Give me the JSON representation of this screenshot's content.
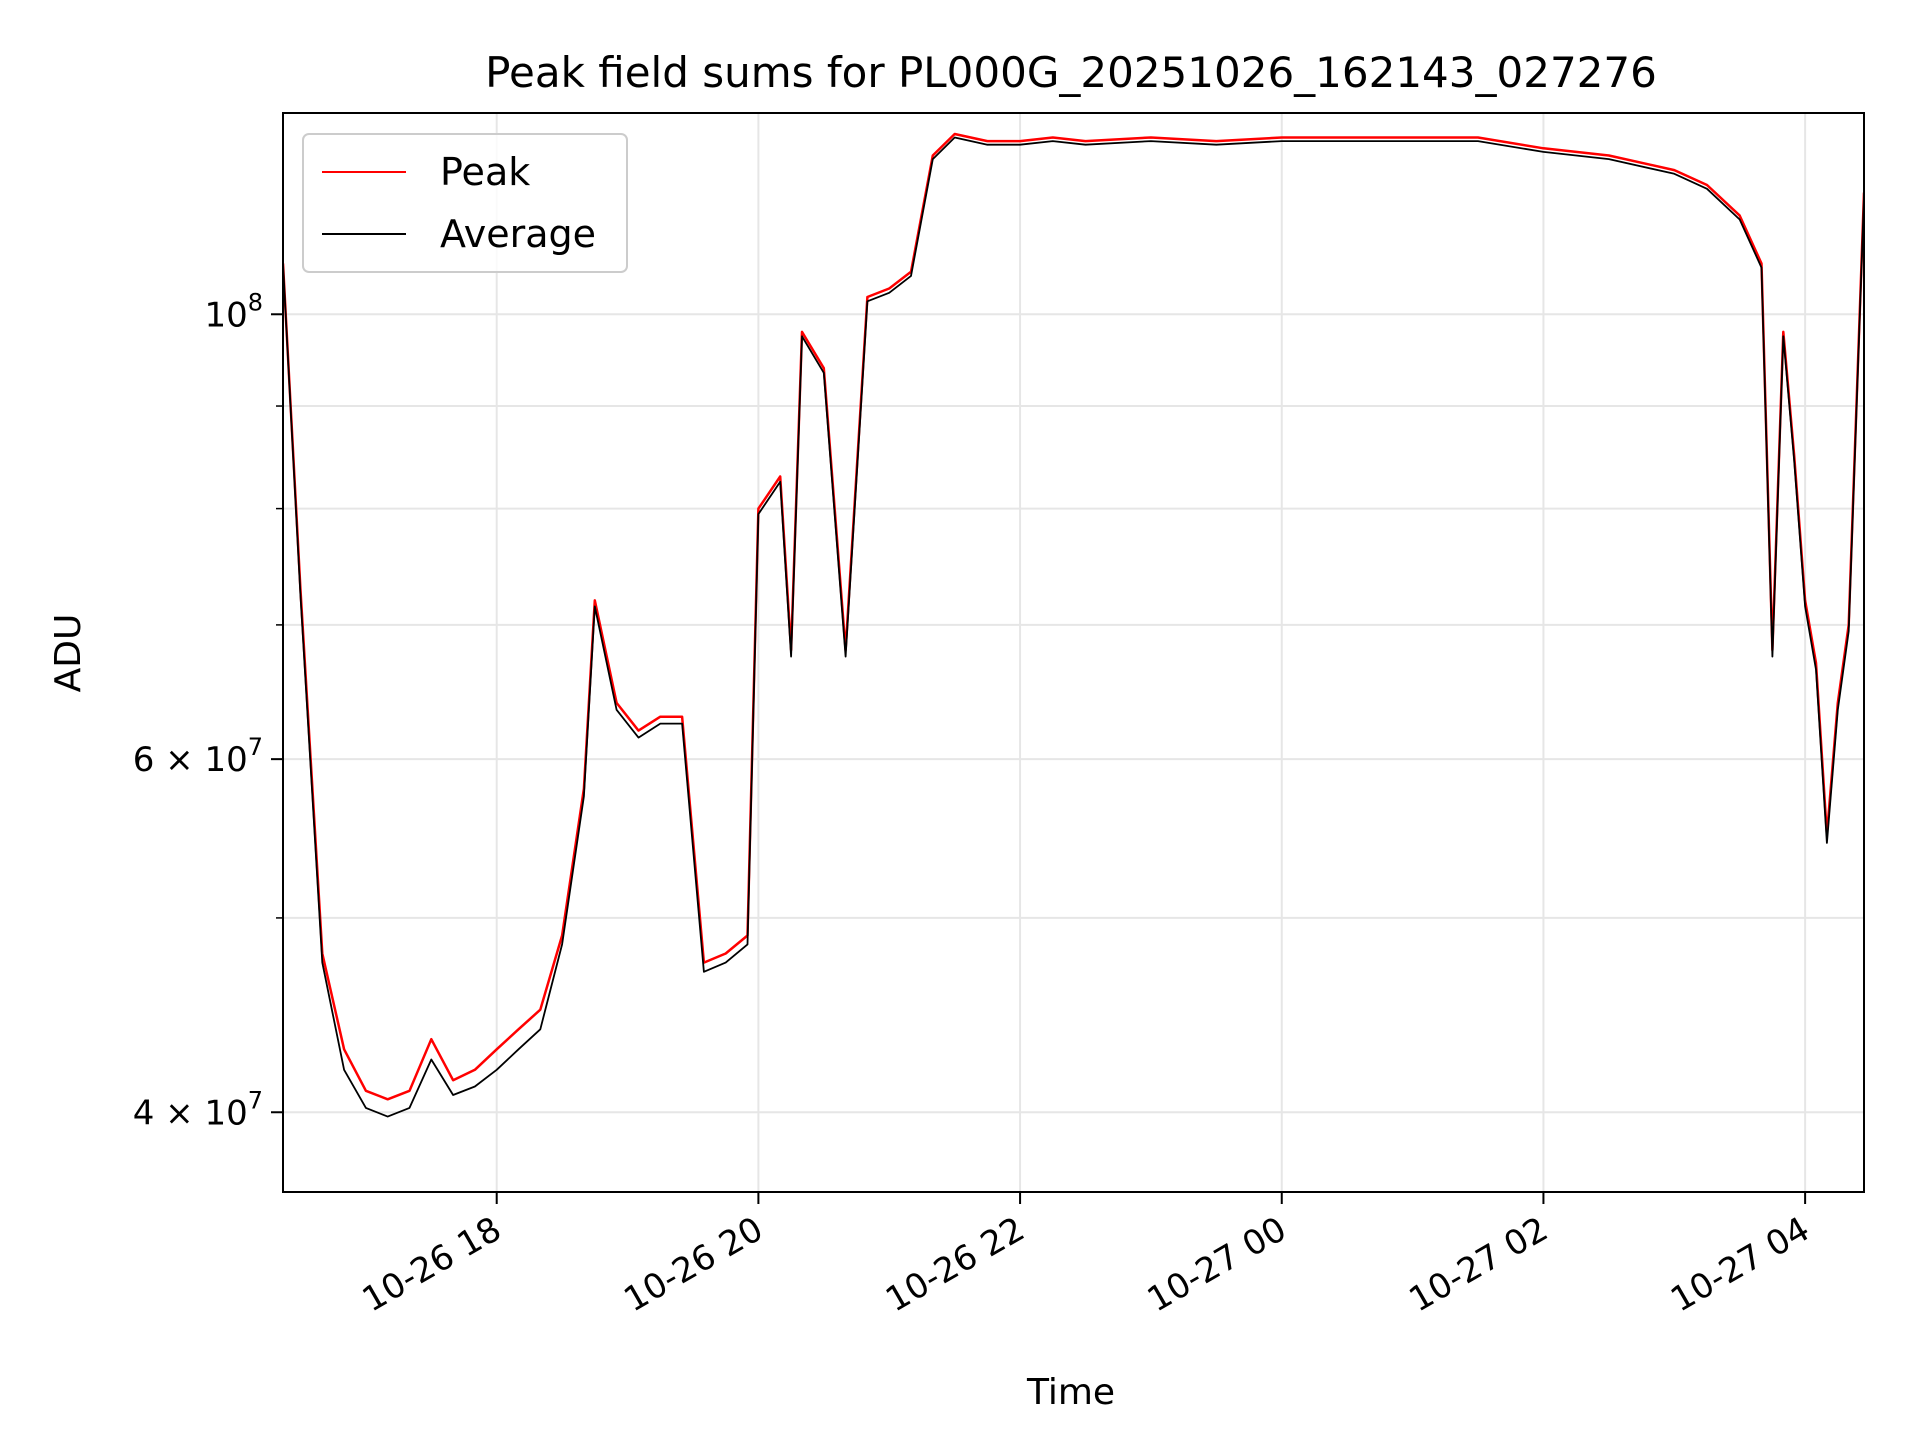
{
  "chart_data": {
    "type": "line",
    "title": "Peak field sums for PL000G_20251026_162143_027276",
    "xlabel": "Time",
    "ylabel": "ADU",
    "yscale": "log",
    "grid": true,
    "legend_position": "top-left",
    "xlim": [
      "2025-10-26 16:22",
      "2025-10-27 04:27"
    ],
    "ylim": [
      36500000,
      126000000
    ],
    "x_ticks": [
      {
        "value": "2025-10-26 18:00",
        "label": "10-26 18"
      },
      {
        "value": "2025-10-26 20:00",
        "label": "10-26 20"
      },
      {
        "value": "2025-10-26 22:00",
        "label": "10-26 22"
      },
      {
        "value": "2025-10-27 00:00",
        "label": "10-27 00"
      },
      {
        "value": "2025-10-27 02:00",
        "label": "10-27 02"
      },
      {
        "value": "2025-10-27 04:00",
        "label": "10-27 04"
      }
    ],
    "y_major_ticks": [
      {
        "value": 40000000,
        "label": "4 × 10",
        "exp": "7"
      },
      {
        "value": 60000000,
        "label": "6 × 10",
        "exp": "7"
      },
      {
        "value": 100000000,
        "label": "10",
        "exp": "8"
      }
    ],
    "y_minor_ticks": [
      50000000,
      70000000,
      80000000,
      90000000
    ],
    "series": [
      {
        "name": "Peak",
        "color": "#ff0000",
        "x": [
          "2025-10-26 16:22",
          "2025-10-26 16:30",
          "2025-10-26 16:40",
          "2025-10-26 16:50",
          "2025-10-26 17:00",
          "2025-10-26 17:10",
          "2025-10-26 17:20",
          "2025-10-26 17:30",
          "2025-10-26 17:40",
          "2025-10-26 17:50",
          "2025-10-26 18:00",
          "2025-10-26 18:10",
          "2025-10-26 18:20",
          "2025-10-26 18:30",
          "2025-10-26 18:40",
          "2025-10-26 18:45",
          "2025-10-26 18:55",
          "2025-10-26 19:05",
          "2025-10-26 19:15",
          "2025-10-26 19:25",
          "2025-10-26 19:35",
          "2025-10-26 19:45",
          "2025-10-26 19:55",
          "2025-10-26 20:00",
          "2025-10-26 20:10",
          "2025-10-26 20:15",
          "2025-10-26 20:20",
          "2025-10-26 20:30",
          "2025-10-26 20:40",
          "2025-10-26 20:50",
          "2025-10-26 21:00",
          "2025-10-26 21:10",
          "2025-10-26 21:20",
          "2025-10-26 21:30",
          "2025-10-26 21:45",
          "2025-10-26 22:00",
          "2025-10-26 22:15",
          "2025-10-26 22:30",
          "2025-10-26 23:00",
          "2025-10-26 23:30",
          "2025-10-27 00:00",
          "2025-10-27 00:30",
          "2025-10-27 01:00",
          "2025-10-27 01:30",
          "2025-10-27 02:00",
          "2025-10-27 02:30",
          "2025-10-27 03:00",
          "2025-10-27 03:15",
          "2025-10-27 03:30",
          "2025-10-27 03:40",
          "2025-10-27 03:45",
          "2025-10-27 03:50",
          "2025-10-27 03:55",
          "2025-10-27 04:00",
          "2025-10-27 04:05",
          "2025-10-27 04:10",
          "2025-10-27 04:15",
          "2025-10-27 04:20",
          "2025-10-27 04:27"
        ],
        "y": [
          106000000,
          73000000,
          48000000,
          43000000,
          41000000,
          40600000,
          41000000,
          43500000,
          41500000,
          42000000,
          43000000,
          44000000,
          45000000,
          49000000,
          58000000,
          72000000,
          64000000,
          62000000,
          63000000,
          63000000,
          47500000,
          48000000,
          49000000,
          80000000,
          83000000,
          68000000,
          98000000,
          94000000,
          68000000,
          102000000,
          103000000,
          105000000,
          120000000,
          123000000,
          122000000,
          122000000,
          122500000,
          122000000,
          122500000,
          122000000,
          122500000,
          122500000,
          122500000,
          122500000,
          121000000,
          120000000,
          118000000,
          116000000,
          112000000,
          106000000,
          68000000,
          98000000,
          85000000,
          72000000,
          67000000,
          55000000,
          64000000,
          70000000,
          115000000
        ]
      },
      {
        "name": "Average",
        "color": "#000000",
        "x": [
          "2025-10-26 16:22",
          "2025-10-26 16:30",
          "2025-10-26 16:40",
          "2025-10-26 16:50",
          "2025-10-26 17:00",
          "2025-10-26 17:10",
          "2025-10-26 17:20",
          "2025-10-26 17:30",
          "2025-10-26 17:40",
          "2025-10-26 17:50",
          "2025-10-26 18:00",
          "2025-10-26 18:10",
          "2025-10-26 18:20",
          "2025-10-26 18:30",
          "2025-10-26 18:40",
          "2025-10-26 18:45",
          "2025-10-26 18:55",
          "2025-10-26 19:05",
          "2025-10-26 19:15",
          "2025-10-26 19:25",
          "2025-10-26 19:35",
          "2025-10-26 19:45",
          "2025-10-26 19:55",
          "2025-10-26 20:00",
          "2025-10-26 20:10",
          "2025-10-26 20:15",
          "2025-10-26 20:20",
          "2025-10-26 20:30",
          "2025-10-26 20:40",
          "2025-10-26 20:50",
          "2025-10-26 21:00",
          "2025-10-26 21:10",
          "2025-10-26 21:20",
          "2025-10-26 21:30",
          "2025-10-26 21:45",
          "2025-10-26 22:00",
          "2025-10-26 22:15",
          "2025-10-26 22:30",
          "2025-10-26 23:00",
          "2025-10-26 23:30",
          "2025-10-27 00:00",
          "2025-10-27 00:30",
          "2025-10-27 01:00",
          "2025-10-27 01:30",
          "2025-10-27 02:00",
          "2025-10-27 02:30",
          "2025-10-27 03:00",
          "2025-10-27 03:15",
          "2025-10-27 03:30",
          "2025-10-27 03:40",
          "2025-10-27 03:45",
          "2025-10-27 03:50",
          "2025-10-27 03:55",
          "2025-10-27 04:00",
          "2025-10-27 04:05",
          "2025-10-27 04:10",
          "2025-10-27 04:15",
          "2025-10-27 04:20",
          "2025-10-27 04:27"
        ],
        "y": [
          106000000,
          72500000,
          47500000,
          42000000,
          40200000,
          39800000,
          40200000,
          42500000,
          40800000,
          41200000,
          42000000,
          43000000,
          44000000,
          48500000,
          57500000,
          71500000,
          63500000,
          61500000,
          62500000,
          62500000,
          47000000,
          47500000,
          48500000,
          79500000,
          82500000,
          67500000,
          97500000,
          93500000,
          67500000,
          101500000,
          102500000,
          104500000,
          119500000,
          122500000,
          121500000,
          121500000,
          122000000,
          121500000,
          122000000,
          121500000,
          122000000,
          122000000,
          122000000,
          122000000,
          120500000,
          119500000,
          117500000,
          115500000,
          111500000,
          105500000,
          67500000,
          97500000,
          84500000,
          71500000,
          66500000,
          54500000,
          63500000,
          69500000,
          114500000
        ]
      }
    ]
  }
}
